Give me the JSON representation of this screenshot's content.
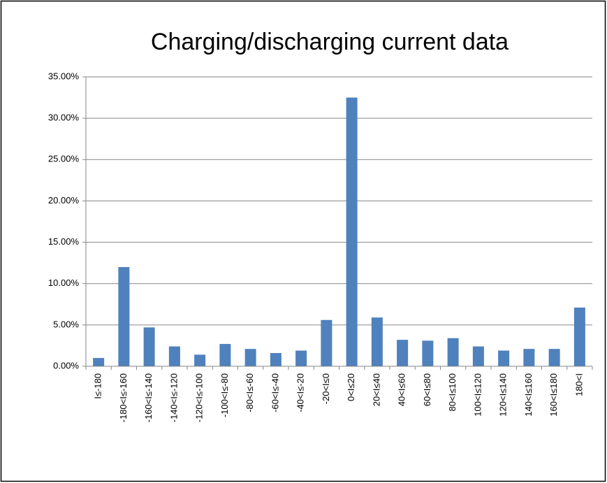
{
  "chart_data": {
    "type": "bar",
    "title": "Charging/discharging current data",
    "categories": [
      "I≤-180",
      "-180<I≤-160",
      "-160<I≤-140",
      "-140<I≤-120",
      "-120<I≤-100",
      "-100<I≤-80",
      "-80<I≤-60",
      "-60<I≤-40",
      "-40<I≤-20",
      "-20<I≤0",
      "0<I≤20",
      "20<I≤40",
      "40<I≤60",
      "60<I≤80",
      "80<I≤100",
      "100<I≤120",
      "120<I≤140",
      "140<I≤160",
      "160<I≤180",
      "180<I"
    ],
    "values": [
      1.0,
      12.0,
      4.7,
      2.4,
      1.4,
      2.7,
      2.1,
      1.6,
      1.9,
      5.6,
      32.5,
      5.9,
      3.2,
      3.1,
      3.4,
      2.4,
      1.9,
      2.1,
      2.1,
      7.1
    ],
    "color": "#4f81bd",
    "ylim": [
      0,
      35
    ],
    "yticks": [
      {
        "value": 0,
        "label": "0.00%"
      },
      {
        "value": 5,
        "label": "5.00%"
      },
      {
        "value": 10,
        "label": "10.00%"
      },
      {
        "value": 15,
        "label": "15.00%"
      },
      {
        "value": 20,
        "label": "20.00%"
      },
      {
        "value": 25,
        "label": "25.00%"
      },
      {
        "value": 30,
        "label": "30.00%"
      },
      {
        "value": 35,
        "label": "35.00%"
      }
    ],
    "grid": true
  }
}
